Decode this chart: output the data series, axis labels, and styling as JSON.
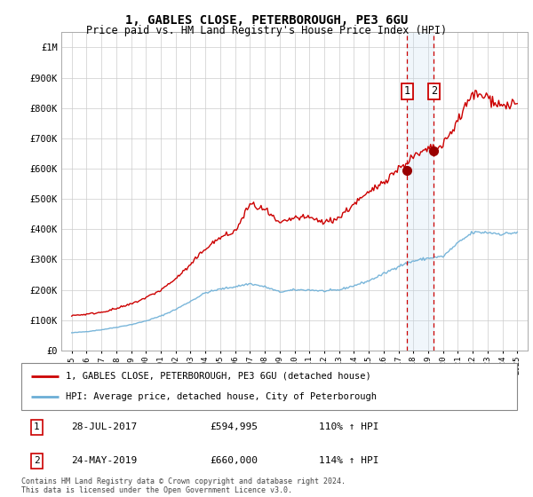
{
  "title": "1, GABLES CLOSE, PETERBOROUGH, PE3 6GU",
  "subtitle": "Price paid vs. HM Land Registry's House Price Index (HPI)",
  "ylim": [
    0,
    1050000
  ],
  "yticks": [
    0,
    100000,
    200000,
    300000,
    400000,
    500000,
    600000,
    700000,
    800000,
    900000,
    1000000
  ],
  "ytick_labels": [
    "£0",
    "£100K",
    "£200K",
    "£300K",
    "£400K",
    "£500K",
    "£600K",
    "£700K",
    "£800K",
    "£900K",
    "£1M"
  ],
  "hpi_color": "#6baed6",
  "price_color": "#cc0000",
  "sale1": {
    "date": "28-JUL-2017",
    "price": 594995,
    "label": "1",
    "hpi_pct": "110%",
    "x": 2017.57
  },
  "sale2": {
    "date": "24-MAY-2019",
    "price": 660000,
    "label": "2",
    "hpi_pct": "114%",
    "x": 2019.38
  },
  "legend_price_label": "1, GABLES CLOSE, PETERBOROUGH, PE3 6GU (detached house)",
  "legend_hpi_label": "HPI: Average price, detached house, City of Peterborough",
  "footnote": "Contains HM Land Registry data © Crown copyright and database right 2024.\nThis data is licensed under the Open Government Licence v3.0.",
  "bg_color": "#ffffff",
  "grid_color": "#cccccc",
  "span_color": "#ddeeff",
  "xtick_start": 1995,
  "xtick_end": 2025,
  "xlim_left": 1994.3,
  "xlim_right": 2025.7
}
